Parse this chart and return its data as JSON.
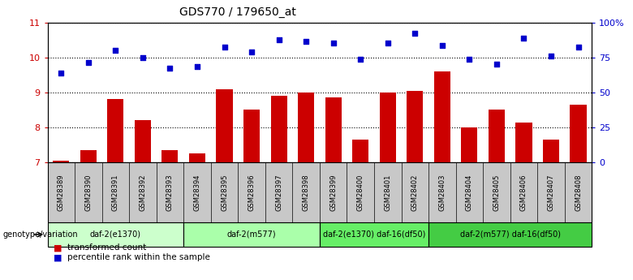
{
  "title": "GDS770 / 179650_at",
  "samples": [
    "GSM28389",
    "GSM28390",
    "GSM28391",
    "GSM28392",
    "GSM28393",
    "GSM28394",
    "GSM28395",
    "GSM28396",
    "GSM28397",
    "GSM28398",
    "GSM28399",
    "GSM28400",
    "GSM28401",
    "GSM28402",
    "GSM28403",
    "GSM28404",
    "GSM28405",
    "GSM28406",
    "GSM28407",
    "GSM28408"
  ],
  "bar_values": [
    7.05,
    7.35,
    8.8,
    8.2,
    7.35,
    7.25,
    9.1,
    8.5,
    8.9,
    9.0,
    8.85,
    7.65,
    9.0,
    9.05,
    9.6,
    8.0,
    8.5,
    8.15,
    7.65,
    8.65
  ],
  "scatter_values": [
    9.55,
    9.85,
    10.2,
    10.0,
    9.7,
    9.75,
    10.3,
    10.15,
    10.5,
    10.45,
    10.4,
    9.95,
    10.4,
    10.7,
    10.35,
    9.95,
    9.8,
    10.55,
    10.05,
    10.3
  ],
  "bar_color": "#cc0000",
  "scatter_color": "#0000cc",
  "ylim_left": [
    7,
    11
  ],
  "yticks_left": [
    7,
    8,
    9,
    10,
    11
  ],
  "ylim_right": [
    0,
    100
  ],
  "yticks_right": [
    0,
    25,
    50,
    75,
    100
  ],
  "yticklabels_right": [
    "0",
    "25",
    "50",
    "75",
    "100%"
  ],
  "groups": [
    {
      "label": "daf-2(e1370)",
      "start": 0,
      "end": 5,
      "color": "#ccffcc"
    },
    {
      "label": "daf-2(m577)",
      "start": 5,
      "end": 10,
      "color": "#aaffaa"
    },
    {
      "label": "daf-2(e1370) daf-16(df50)",
      "start": 10,
      "end": 14,
      "color": "#66ee66"
    },
    {
      "label": "daf-2(m577) daf-16(df50)",
      "start": 14,
      "end": 20,
      "color": "#44cc44"
    }
  ],
  "genotype_label": "genotype/variation",
  "legend_bar_label": "transformed count",
  "legend_scatter_label": "percentile rank within the sample",
  "xtick_bg_color": "#c8c8c8"
}
